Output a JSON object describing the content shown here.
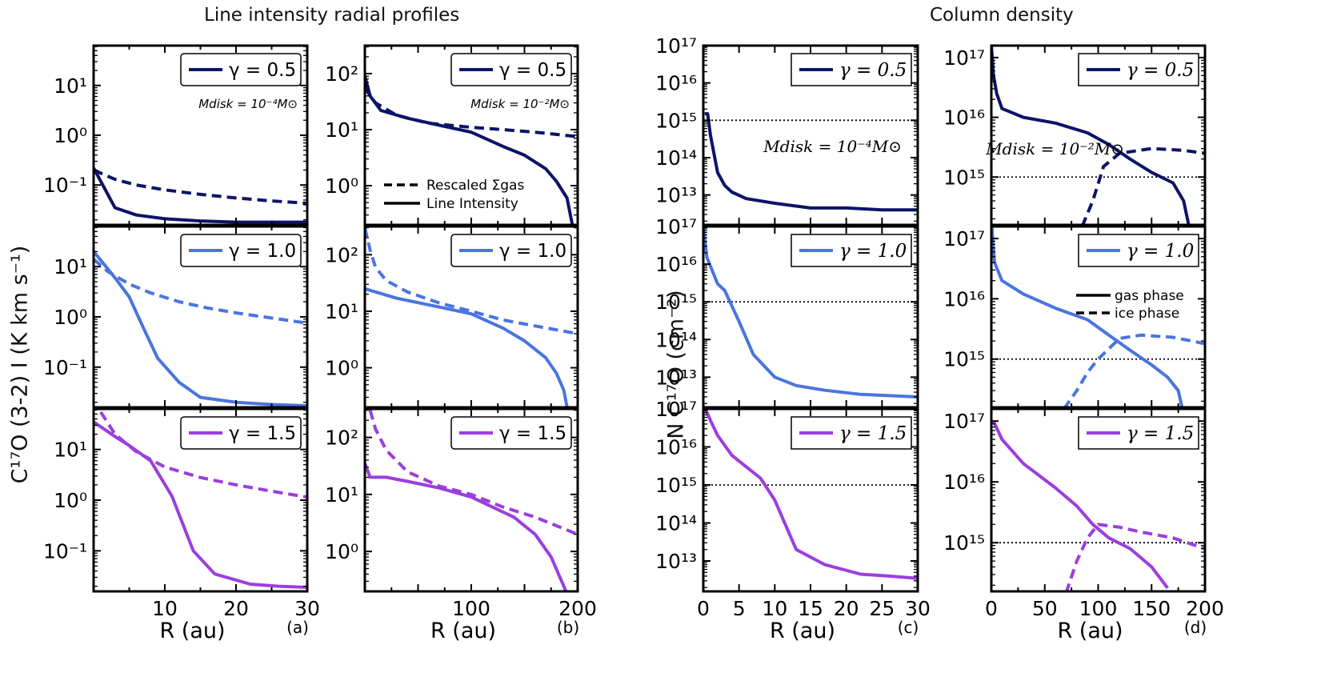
{
  "figure": {
    "left_title": "Line intensity radial profiles",
    "right_title": "Column density",
    "left_ylabel": "C¹⁷O (3-2) I (K km s⁻¹)",
    "right_ylabel": "N C¹⁷O (cm⁻²)",
    "xlabel": "R (au)",
    "panel_labels": [
      "(a)",
      "(b)",
      "(c)",
      "(d)"
    ],
    "legend_intensity": {
      "dashed": "Rescaled Σgas",
      "solid": "Line Intensity"
    },
    "legend_column": {
      "solid": "gas phase",
      "dashed": "ice phase"
    },
    "mass_labels": {
      "a": "Mdisk = 10⁻⁴M⊙",
      "b": "Mdisk = 10⁻²M⊙",
      "c": "Mdisk = 10⁻⁴M⊙",
      "d": "Mdisk = 10⁻²M⊙"
    },
    "colors": {
      "g05": "#0b1468",
      "g10": "#4a74e0",
      "g15": "#9b3ede",
      "axis": "#000000"
    }
  },
  "chart_data": [
    {
      "id": "a1",
      "type": "line",
      "gamma": "γ = 0.5",
      "xlim": [
        0,
        30
      ],
      "ylim_log": [
        -1.8,
        1.8
      ],
      "ytick_exps": [
        -1,
        0,
        1
      ],
      "ytick_labels": [
        "10⁻¹",
        "10⁰",
        "10¹"
      ],
      "xticks": [],
      "xtick_labels": [],
      "dashed": [
        [
          0,
          0.2
        ],
        [
          3,
          0.13
        ],
        [
          6,
          0.1
        ],
        [
          10,
          0.08
        ],
        [
          15,
          0.065
        ],
        [
          20,
          0.055
        ],
        [
          25,
          0.048
        ],
        [
          30,
          0.043
        ]
      ],
      "solid": [
        [
          0,
          0.22
        ],
        [
          3,
          0.035
        ],
        [
          6,
          0.025
        ],
        [
          10,
          0.021
        ],
        [
          15,
          0.019
        ],
        [
          20,
          0.018
        ],
        [
          25,
          0.018
        ],
        [
          30,
          0.018
        ]
      ]
    },
    {
      "id": "a2",
      "type": "line",
      "gamma": "γ = 1.0",
      "xlim": [
        0,
        30
      ],
      "ylim_log": [
        -1.8,
        1.8
      ],
      "ytick_exps": [
        -1,
        0,
        1
      ],
      "ytick_labels": [
        "10⁻¹",
        "10⁰",
        "10¹"
      ],
      "xticks": [],
      "xtick_labels": [],
      "dashed": [
        [
          0,
          14
        ],
        [
          2,
          8
        ],
        [
          5,
          4.5
        ],
        [
          8,
          3
        ],
        [
          12,
          2
        ],
        [
          16,
          1.5
        ],
        [
          20,
          1.2
        ],
        [
          25,
          0.95
        ],
        [
          30,
          0.75
        ]
      ],
      "solid": [
        [
          0,
          20
        ],
        [
          3,
          6
        ],
        [
          5,
          2.5
        ],
        [
          7,
          0.6
        ],
        [
          9,
          0.15
        ],
        [
          12,
          0.05
        ],
        [
          15,
          0.025
        ],
        [
          20,
          0.02
        ],
        [
          25,
          0.018
        ],
        [
          30,
          0.017
        ]
      ]
    },
    {
      "id": "a3",
      "type": "line",
      "gamma": "γ = 1.5",
      "xlim": [
        0,
        30
      ],
      "ylim_log": [
        -1.8,
        1.8
      ],
      "ytick_exps": [
        -1,
        0,
        1
      ],
      "ytick_labels": [
        "10⁻¹",
        "10⁰",
        "10¹"
      ],
      "xticks": [
        0,
        10,
        20,
        30
      ],
      "xtick_labels": [
        "",
        "10",
        "20",
        "30"
      ],
      "dashed": [
        [
          1,
          55
        ],
        [
          3,
          20
        ],
        [
          6,
          9
        ],
        [
          10,
          4.5
        ],
        [
          15,
          2.8
        ],
        [
          20,
          2
        ],
        [
          25,
          1.5
        ],
        [
          30,
          1.15
        ]
      ],
      "solid": [
        [
          0,
          35
        ],
        [
          3,
          18
        ],
        [
          5,
          12
        ],
        [
          8,
          6
        ],
        [
          11,
          1.2
        ],
        [
          14,
          0.1
        ],
        [
          17,
          0.035
        ],
        [
          22,
          0.022
        ],
        [
          26,
          0.02
        ],
        [
          30,
          0.019
        ]
      ]
    },
    {
      "id": "b1",
      "type": "line",
      "gamma": "γ = 0.5",
      "xlim": [
        0,
        200
      ],
      "ylim_log": [
        -0.7,
        2.5
      ],
      "ytick_exps": [
        0,
        1,
        2
      ],
      "ytick_labels": [
        "10⁰",
        "10¹",
        "10²"
      ],
      "xticks": [],
      "xtick_labels": [],
      "dashed": [
        [
          0,
          55
        ],
        [
          10,
          30
        ],
        [
          30,
          18
        ],
        [
          60,
          13
        ],
        [
          100,
          11
        ],
        [
          130,
          10
        ],
        [
          160,
          9
        ],
        [
          200,
          7.5
        ]
      ],
      "solid": [
        [
          0,
          90
        ],
        [
          5,
          40
        ],
        [
          15,
          22
        ],
        [
          40,
          16
        ],
        [
          70,
          12
        ],
        [
          100,
          9
        ],
        [
          130,
          5
        ],
        [
          150,
          3.5
        ],
        [
          170,
          2
        ],
        [
          180,
          1.2
        ],
        [
          190,
          0.6
        ],
        [
          195,
          0.2
        ]
      ]
    },
    {
      "id": "b2",
      "type": "line",
      "gamma": "γ = 1.0",
      "xlim": [
        0,
        200
      ],
      "ylim_log": [
        -0.7,
        2.5
      ],
      "ytick_exps": [
        0,
        1,
        2
      ],
      "ytick_labels": [
        "10⁰",
        "10¹",
        "10²"
      ],
      "xticks": [],
      "xtick_labels": [],
      "dashed": [
        [
          0,
          300
        ],
        [
          5,
          120
        ],
        [
          10,
          60
        ],
        [
          20,
          35
        ],
        [
          40,
          22
        ],
        [
          70,
          14
        ],
        [
          100,
          10
        ],
        [
          130,
          7
        ],
        [
          160,
          5.5
        ],
        [
          200,
          4
        ]
      ],
      "solid": [
        [
          0,
          25
        ],
        [
          10,
          22
        ],
        [
          30,
          17
        ],
        [
          60,
          13
        ],
        [
          100,
          9
        ],
        [
          130,
          5
        ],
        [
          150,
          3
        ],
        [
          170,
          1.5
        ],
        [
          180,
          0.8
        ],
        [
          187,
          0.4
        ],
        [
          190,
          0.2
        ]
      ]
    },
    {
      "id": "b3",
      "type": "line",
      "gamma": "γ = 1.5",
      "xlim": [
        0,
        200
      ],
      "ylim_log": [
        -0.7,
        2.5
      ],
      "ytick_exps": [
        0,
        1,
        2
      ],
      "ytick_labels": [
        "10⁰",
        "10¹",
        "10²"
      ],
      "xticks": [
        0,
        100,
        200
      ],
      "xtick_labels": [
        "",
        "100",
        "200"
      ],
      "dashed": [
        [
          5,
          300
        ],
        [
          10,
          140
        ],
        [
          20,
          60
        ],
        [
          40,
          25
        ],
        [
          70,
          14
        ],
        [
          100,
          10
        ],
        [
          130,
          6
        ],
        [
          160,
          4
        ],
        [
          200,
          2
        ]
      ],
      "solid": [
        [
          0,
          35
        ],
        [
          5,
          20
        ],
        [
          20,
          20
        ],
        [
          40,
          17
        ],
        [
          70,
          13
        ],
        [
          100,
          9
        ],
        [
          120,
          6
        ],
        [
          140,
          4
        ],
        [
          160,
          2
        ],
        [
          175,
          0.8
        ],
        [
          185,
          0.3
        ],
        [
          190,
          0.18
        ]
      ]
    },
    {
      "id": "c1",
      "type": "line",
      "gamma": "γ = 0.5",
      "xlim": [
        0,
        30
      ],
      "ylim_log": [
        12.2,
        17
      ],
      "ytick_exps": [
        13,
        14,
        15,
        16,
        17
      ],
      "ytick_labels": [
        "10¹³",
        "10¹⁴",
        "10¹⁵",
        "10¹⁶",
        "10¹⁷"
      ],
      "xticks": [],
      "xtick_labels": [],
      "hline": 1000000000000000.0,
      "solid": [
        [
          0.2,
          1500000000000000.0
        ],
        [
          0.6,
          1500000000000000.0
        ],
        [
          1,
          400000000000000.0
        ],
        [
          2,
          40000000000000.0
        ],
        [
          3,
          18000000000000.0
        ],
        [
          4,
          12000000000000.0
        ],
        [
          6,
          8000000000000.0
        ],
        [
          10,
          6000000000000.0
        ],
        [
          15,
          4500000000000.0
        ],
        [
          20,
          4500000000000.0
        ],
        [
          25,
          4000000000000.0
        ],
        [
          30,
          4000000000000.0
        ]
      ]
    },
    {
      "id": "c2",
      "type": "line",
      "gamma": "γ = 1.0",
      "xlim": [
        0,
        30
      ],
      "ylim_log": [
        12.2,
        17
      ],
      "ytick_exps": [
        13,
        14,
        15,
        16,
        17
      ],
      "ytick_labels": [
        "10¹³",
        "10¹⁴",
        "10¹⁵",
        "10¹⁶",
        "10¹⁷"
      ],
      "xticks": [],
      "xtick_labels": [],
      "hline": 1000000000000000.0,
      "solid": [
        [
          0,
          1e+17
        ],
        [
          0.5,
          1.5e+16
        ],
        [
          2,
          3000000000000000.0
        ],
        [
          3,
          2000000000000000.0
        ],
        [
          5,
          300000000000000.0
        ],
        [
          7,
          40000000000000.0
        ],
        [
          10,
          10000000000000.0
        ],
        [
          13,
          6000000000000.0
        ],
        [
          17,
          4500000000000.0
        ],
        [
          22,
          3500000000000.0
        ],
        [
          30,
          3000000000000.0
        ]
      ]
    },
    {
      "id": "c3",
      "type": "line",
      "gamma": "γ = 1.5",
      "xlim": [
        0,
        30
      ],
      "ylim_log": [
        12.2,
        17
      ],
      "ytick_exps": [
        13,
        14,
        15,
        16,
        17
      ],
      "ytick_labels": [
        "10¹³",
        "10¹⁴",
        "10¹⁵",
        "10¹⁶",
        "10¹⁷"
      ],
      "xticks": [
        0,
        5,
        10,
        15,
        20,
        25,
        30
      ],
      "xtick_labels": [
        "0",
        "5",
        "10",
        "15",
        "20",
        "25",
        "30"
      ],
      "hline": 1000000000000000.0,
      "solid": [
        [
          0.3,
          1e+17
        ],
        [
          1,
          5e+16
        ],
        [
          2,
          2e+16
        ],
        [
          4,
          6000000000000000.0
        ],
        [
          6,
          3000000000000000.0
        ],
        [
          8,
          1500000000000000.0
        ],
        [
          10,
          400000000000000.0
        ],
        [
          13,
          20000000000000.0
        ],
        [
          17,
          8000000000000.0
        ],
        [
          22,
          4500000000000.0
        ],
        [
          26,
          4000000000000.0
        ],
        [
          30,
          3500000000000.0
        ]
      ]
    },
    {
      "id": "d1",
      "type": "line",
      "gamma": "γ = 0.5",
      "xlim": [
        0,
        200
      ],
      "ylim_log": [
        14.2,
        17.2
      ],
      "ytick_exps": [
        15,
        16,
        17
      ],
      "ytick_labels": [
        "10¹⁵",
        "10¹⁶",
        "10¹⁷"
      ],
      "xticks": [],
      "xtick_labels": [],
      "hline": 1000000000000000.0,
      "solid": [
        [
          0,
          1.6e+17
        ],
        [
          2,
          5e+16
        ],
        [
          5,
          2.5e+16
        ],
        [
          10,
          1.4e+16
        ],
        [
          30,
          1e+16
        ],
        [
          60,
          8000000000000000.0
        ],
        [
          90,
          5500000000000000.0
        ],
        [
          110,
          3500000000000000.0
        ],
        [
          130,
          2000000000000000.0
        ],
        [
          150,
          1200000000000000.0
        ],
        [
          170,
          800000000000000.0
        ],
        [
          180,
          400000000000000.0
        ],
        [
          185,
          150000000000000.0
        ]
      ],
      "dashed": [
        [
          85,
          150000000000000.0
        ],
        [
          95,
          400000000000000.0
        ],
        [
          105,
          1500000000000000.0
        ],
        [
          120,
          2500000000000000.0
        ],
        [
          150,
          3000000000000000.0
        ],
        [
          180,
          2800000000000000.0
        ],
        [
          200,
          2500000000000000.0
        ]
      ]
    },
    {
      "id": "d2",
      "type": "line",
      "gamma": "γ = 1.0",
      "xlim": [
        0,
        200
      ],
      "ylim_log": [
        14.2,
        17.2
      ],
      "ytick_exps": [
        15,
        16,
        17
      ],
      "ytick_labels": [
        "10¹⁵",
        "10¹⁶",
        "10¹⁷"
      ],
      "xticks": [],
      "xtick_labels": [],
      "hline": 1000000000000000.0,
      "solid": [
        [
          0,
          2e+17
        ],
        [
          3,
          4e+16
        ],
        [
          10,
          2e+16
        ],
        [
          30,
          1.2e+16
        ],
        [
          60,
          7000000000000000.0
        ],
        [
          90,
          4500000000000000.0
        ],
        [
          110,
          2500000000000000.0
        ],
        [
          130,
          1400000000000000.0
        ],
        [
          150,
          800000000000000.0
        ],
        [
          165,
          500000000000000.0
        ],
        [
          175,
          300000000000000.0
        ],
        [
          180,
          120000000000000.0
        ]
      ],
      "dashed": [
        [
          68,
          150000000000000.0
        ],
        [
          80,
          300000000000000.0
        ],
        [
          90,
          600000000000000.0
        ],
        [
          100,
          1000000000000000.0
        ],
        [
          120,
          2200000000000000.0
        ],
        [
          140,
          2500000000000000.0
        ],
        [
          170,
          2300000000000000.0
        ],
        [
          200,
          1800000000000000.0
        ]
      ]
    },
    {
      "id": "d3",
      "type": "line",
      "gamma": "γ = 1.5",
      "xlim": [
        0,
        200
      ],
      "ylim_log": [
        14.2,
        17.2
      ],
      "ytick_exps": [
        15,
        16,
        17
      ],
      "ytick_labels": [
        "10¹⁵",
        "10¹⁶",
        "10¹⁷"
      ],
      "xticks": [
        0,
        50,
        100,
        150,
        200
      ],
      "xtick_labels": [
        "0",
        "50",
        "100",
        "150",
        "200"
      ],
      "hline": 1000000000000000.0,
      "solid": [
        [
          2,
          1e+17
        ],
        [
          10,
          5e+16
        ],
        [
          30,
          2e+16
        ],
        [
          60,
          8000000000000000.0
        ],
        [
          80,
          4000000000000000.0
        ],
        [
          95,
          2000000000000000.0
        ],
        [
          110,
          1200000000000000.0
        ],
        [
          130,
          800000000000000.0
        ],
        [
          150,
          400000000000000.0
        ],
        [
          165,
          180000000000000.0
        ]
      ],
      "dashed": [
        [
          70,
          150000000000000.0
        ],
        [
          80,
          500000000000000.0
        ],
        [
          90,
          1200000000000000.0
        ],
        [
          100,
          2000000000000000.0
        ],
        [
          120,
          1800000000000000.0
        ],
        [
          140,
          1500000000000000.0
        ],
        [
          170,
          1200000000000000.0
        ],
        [
          200,
          800000000000000.0
        ]
      ]
    }
  ]
}
